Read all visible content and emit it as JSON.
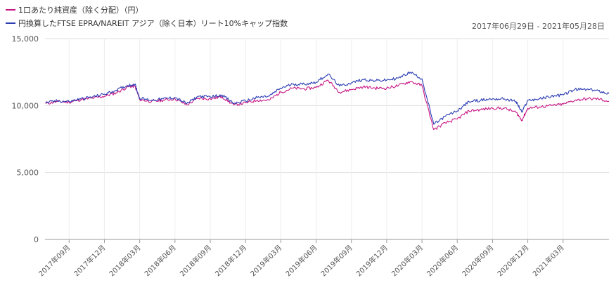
{
  "date_range": "2017年06月29日 - 2021年05月28日",
  "chart_data": {
    "type": "line",
    "title": "",
    "xlabel": "",
    "ylabel": "",
    "ylim": [
      0,
      15000
    ],
    "y_ticks": [
      {
        "value": 0,
        "label": "0"
      },
      {
        "value": 5000,
        "label": "5,000"
      },
      {
        "value": 10000,
        "label": "10,000"
      },
      {
        "value": 15000,
        "label": "15,000"
      }
    ],
    "x_ticks": [
      "2017年09月",
      "2017年12月",
      "2018年03月",
      "2018年06月",
      "2018年09月",
      "2018年12月",
      "2019年03月",
      "2019年06月",
      "2019年09月",
      "2019年12月",
      "2020年03月",
      "2020年06月",
      "2020年09月",
      "2020年12月",
      "2021年03月"
    ],
    "x_tick_months": [
      2,
      5,
      8,
      11,
      14,
      17,
      20,
      23,
      26,
      29,
      32,
      35,
      38,
      41,
      44
    ],
    "x_range_months": [
      -0.05,
      47.9
    ],
    "grid": true,
    "legend_position": "top-left",
    "series": [
      {
        "name": "1口あたり純資産（除く分配）（円）",
        "color": "#c71585",
        "points": [
          [
            0,
            10150
          ],
          [
            1,
            10300
          ],
          [
            2,
            10250
          ],
          [
            3,
            10450
          ],
          [
            4,
            10550
          ],
          [
            5,
            10700
          ],
          [
            6,
            10950
          ],
          [
            7,
            11400
          ],
          [
            7.6,
            11450
          ],
          [
            8,
            10450
          ],
          [
            9,
            10300
          ],
          [
            10,
            10400
          ],
          [
            11,
            10500
          ],
          [
            12,
            10050
          ],
          [
            13,
            10550
          ],
          [
            14,
            10500
          ],
          [
            15,
            10650
          ],
          [
            16,
            10050
          ],
          [
            17,
            10200
          ],
          [
            18,
            10400
          ],
          [
            19,
            10400
          ],
          [
            20,
            11000
          ],
          [
            21,
            11300
          ],
          [
            22,
            11250
          ],
          [
            23,
            11350
          ],
          [
            24,
            11900
          ],
          [
            25,
            11000
          ],
          [
            26,
            11200
          ],
          [
            27,
            11400
          ],
          [
            28,
            11300
          ],
          [
            29,
            11300
          ],
          [
            30,
            11500
          ],
          [
            31,
            11800
          ],
          [
            32,
            11500
          ],
          [
            33,
            8200
          ],
          [
            34,
            8700
          ],
          [
            35,
            9000
          ],
          [
            36,
            9600
          ],
          [
            37,
            9700
          ],
          [
            38,
            9800
          ],
          [
            39,
            9800
          ],
          [
            40,
            9500
          ],
          [
            40.5,
            8900
          ],
          [
            41,
            9800
          ],
          [
            42,
            9900
          ],
          [
            43,
            10000
          ],
          [
            44,
            10100
          ],
          [
            45,
            10400
          ],
          [
            46,
            10500
          ],
          [
            47,
            10500
          ],
          [
            47.9,
            10300
          ]
        ]
      },
      {
        "name": "円換算したFTSE EPRA/NAREIT アジア（除く日本）リート10%キャップ指数",
        "color": "#2b3db3",
        "points": [
          [
            0,
            10200
          ],
          [
            1,
            10350
          ],
          [
            2,
            10300
          ],
          [
            3,
            10500
          ],
          [
            4,
            10650
          ],
          [
            5,
            10850
          ],
          [
            6,
            11150
          ],
          [
            7,
            11500
          ],
          [
            7.6,
            11600
          ],
          [
            8,
            10550
          ],
          [
            9,
            10400
          ],
          [
            10,
            10500
          ],
          [
            11,
            10600
          ],
          [
            12,
            10150
          ],
          [
            13,
            10700
          ],
          [
            14,
            10650
          ],
          [
            15,
            10800
          ],
          [
            16,
            10150
          ],
          [
            17,
            10350
          ],
          [
            18,
            10600
          ],
          [
            19,
            10700
          ],
          [
            20,
            11300
          ],
          [
            21,
            11600
          ],
          [
            22,
            11600
          ],
          [
            23,
            11750
          ],
          [
            24,
            12350
          ],
          [
            25,
            11450
          ],
          [
            26,
            11700
          ],
          [
            27,
            11950
          ],
          [
            28,
            11850
          ],
          [
            29,
            11900
          ],
          [
            30,
            12050
          ],
          [
            31,
            12500
          ],
          [
            32,
            12000
          ],
          [
            33,
            8600
          ],
          [
            34,
            9200
          ],
          [
            35,
            9600
          ],
          [
            36,
            10300
          ],
          [
            37,
            10400
          ],
          [
            38,
            10500
          ],
          [
            39,
            10500
          ],
          [
            40,
            10300
          ],
          [
            40.5,
            9500
          ],
          [
            41,
            10400
          ],
          [
            42,
            10500
          ],
          [
            43,
            10700
          ],
          [
            44,
            10800
          ],
          [
            45,
            11200
          ],
          [
            46,
            11200
          ],
          [
            47,
            11100
          ],
          [
            47.9,
            10900
          ]
        ]
      }
    ]
  }
}
